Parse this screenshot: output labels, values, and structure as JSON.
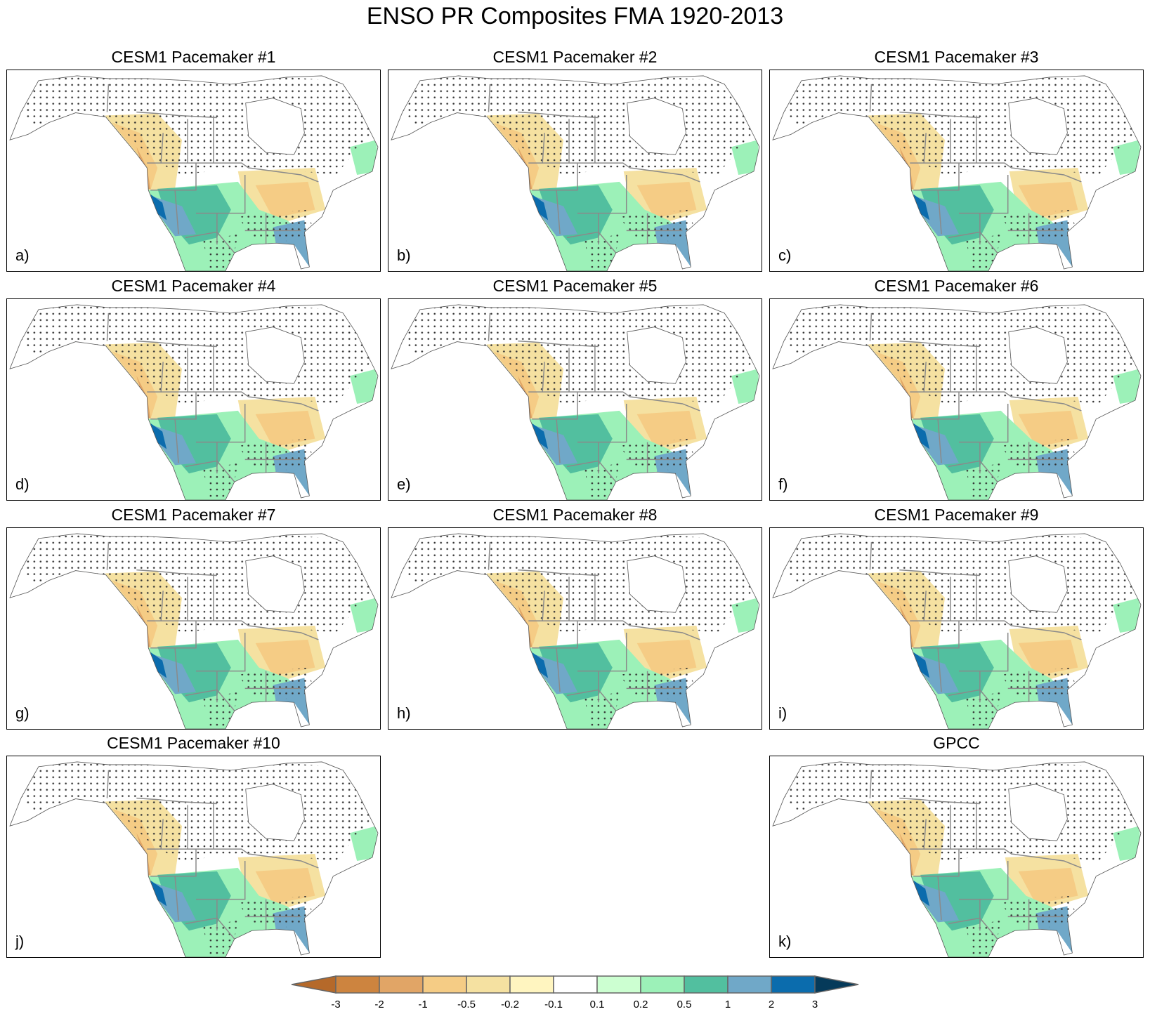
{
  "title": "ENSO PR Composites FMA 1920-2013",
  "panels": [
    {
      "title": "CESM1 Pacemaker #1",
      "label": "a)"
    },
    {
      "title": "CESM1 Pacemaker #2",
      "label": "b)"
    },
    {
      "title": "CESM1 Pacemaker #3",
      "label": "c)"
    },
    {
      "title": "CESM1 Pacemaker #4",
      "label": "d)"
    },
    {
      "title": "CESM1 Pacemaker #5",
      "label": "e)"
    },
    {
      "title": "CESM1 Pacemaker #6",
      "label": "f)"
    },
    {
      "title": "CESM1 Pacemaker #7",
      "label": "g)"
    },
    {
      "title": "CESM1 Pacemaker #8",
      "label": "h)"
    },
    {
      "title": "CESM1 Pacemaker #9",
      "label": "i)"
    },
    {
      "title": "CESM1 Pacemaker #10",
      "label": "j)"
    },
    {
      "title": "GPCC",
      "label": "k)"
    }
  ],
  "colorbar": {
    "levels": [
      "-3",
      "-2",
      "-1",
      "-0.5",
      "-0.2",
      "-0.1",
      "0.1",
      "0.2",
      "0.5",
      "1",
      "2",
      "3"
    ],
    "colors": [
      "#b5692a",
      "#cd843f",
      "#e1a566",
      "#f5cc85",
      "#f5e1a1",
      "#fff5c0",
      "#ffffff",
      "#ccffd1",
      "#9cf1b8",
      "#52bf9f",
      "#70a8c8",
      "#0b6cad",
      "#053a5a"
    ]
  }
}
